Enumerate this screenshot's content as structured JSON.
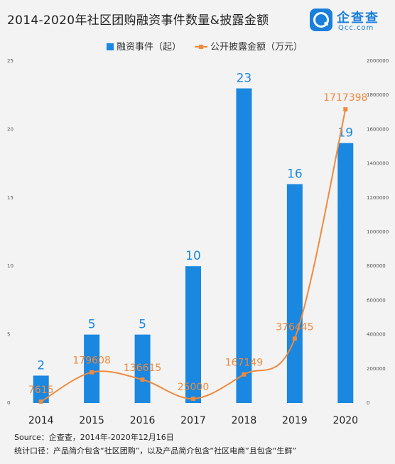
{
  "title": "2014-2020年社区团购融资事件数量&披露金额",
  "brand": {
    "name": "企查查",
    "domain": "Qcc.com",
    "icon": "qcc-logo-icon",
    "color": "#1a7fdc"
  },
  "chart_data": {
    "type": "bar",
    "categories": [
      "2014",
      "2015",
      "2016",
      "2017",
      "2018",
      "2019",
      "2020"
    ],
    "series": [
      {
        "name": "融资事件（起）",
        "type": "bar",
        "axis": "left",
        "color": "#1a87e0",
        "values": [
          2,
          5,
          5,
          10,
          23,
          16,
          19
        ],
        "labels": [
          "2",
          "5",
          "5",
          "10",
          "23",
          "16",
          "19"
        ]
      },
      {
        "name": "公开披露金额（万元）",
        "type": "line",
        "axis": "right",
        "color": "#f08a3c",
        "values": [
          7615,
          179608,
          136615,
          25000,
          167149,
          376445,
          1717398
        ],
        "labels": [
          "7615",
          "179608",
          "136615",
          "25000",
          "167149",
          "376445",
          "1717398"
        ]
      }
    ],
    "y_left": {
      "ylim": [
        0,
        25
      ],
      "ticks": [
        "0",
        "5",
        "10",
        "15",
        "20",
        "25"
      ]
    },
    "y_right": {
      "ylim": [
        0,
        2000000
      ],
      "ticks": [
        "0",
        "200000",
        "400000",
        "600000",
        "800000",
        "1000000",
        "1200000",
        "1400000",
        "1600000",
        "1800000",
        "2000000"
      ]
    },
    "legend_position": "top-center",
    "grid": false
  },
  "footer": {
    "source": "Source：企查查，2014年-2020年12月16日",
    "caliber": "统计口径：产品简介包含“社区团购”，以及产品简介包含“社区电商”且包含“生鲜”"
  }
}
